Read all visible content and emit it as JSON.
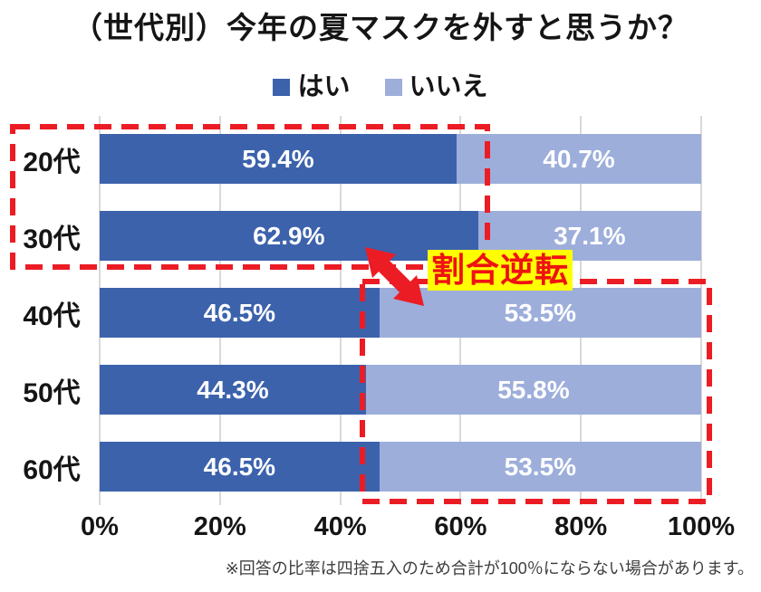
{
  "title": "（世代別）今年の夏マスクを外すと思うか？",
  "legend": [
    {
      "label": "はい",
      "color": "#3c62ac"
    },
    {
      "label": "いいえ",
      "color": "#9daedb"
    }
  ],
  "chart_data": {
    "type": "bar",
    "orientation": "horizontal-stacked",
    "title": "（世代別）今年の夏マスクを外すと思うか？",
    "categories": [
      "20代",
      "30代",
      "40代",
      "50代",
      "60代"
    ],
    "series": [
      {
        "name": "はい",
        "color": "#3c62ac",
        "values": [
          59.4,
          62.9,
          46.5,
          44.3,
          46.5
        ],
        "labels": [
          "59.4%",
          "62.9%",
          "46.5%",
          "44.3%",
          "46.5%"
        ]
      },
      {
        "name": "いいえ",
        "color": "#9daedb",
        "values": [
          40.7,
          37.1,
          53.5,
          55.8,
          53.5
        ],
        "labels": [
          "40.7%",
          "37.1%",
          "53.5%",
          "55.8%",
          "53.5%"
        ]
      }
    ],
    "x_ticks": [
      "0%",
      "20%",
      "40%",
      "60%",
      "80%",
      "100%"
    ],
    "xlim": [
      0,
      100
    ],
    "grid": true,
    "legend_position": "top"
  },
  "annotations": {
    "highlight_label": "割合逆転",
    "highlight_label_bg": "#ffff00",
    "highlight_label_color": "#ef1212",
    "dashed_color": "#ec1c24",
    "arrow_color": "#ec1c24"
  },
  "footnote": "※回答の比率は四捨五入のため合計が100％にならない場合があります。"
}
